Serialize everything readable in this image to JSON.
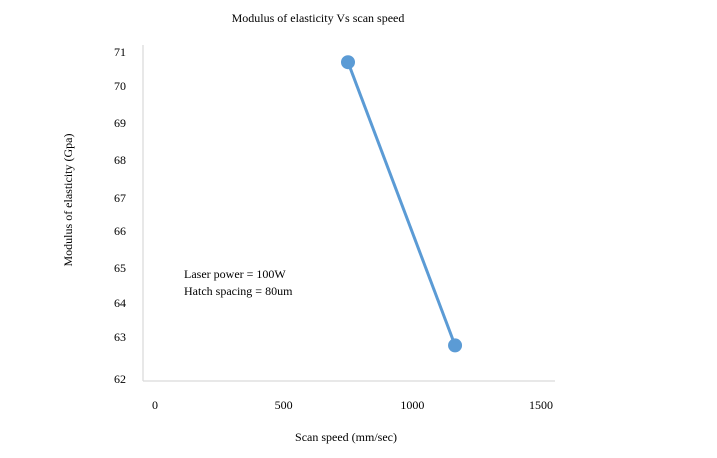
{
  "chart_data": {
    "type": "line",
    "title": "Modulus of elasticity Vs scan speed",
    "xlabel": "Scan speed (mm/sec)",
    "ylabel": "Modulus of elasticity (Gpa)",
    "xlim": [
      0,
      1500
    ],
    "ylim": [
      62,
      71
    ],
    "x_ticks": [
      0,
      500,
      1000,
      1500
    ],
    "y_ticks": [
      62,
      63,
      64,
      65,
      66,
      67,
      68,
      69,
      70,
      71
    ],
    "series": [
      {
        "x": [
          750,
          1166
        ],
        "values": [
          70.7,
          62.8
        ]
      }
    ],
    "annotations": [
      "Laser power = 100W",
      "Hatch spacing = 80um"
    ],
    "grid": false,
    "colors": {
      "line": "#5b9bd5",
      "marker": "#5b9bd5",
      "axis": "#d9d9d9"
    }
  }
}
